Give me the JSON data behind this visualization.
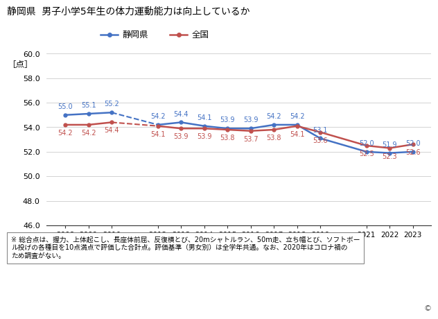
{
  "title": "静岡県  男子小学5年生の体力運動能力は向上しているか",
  "ylabel": "［点］",
  "years_shizuoka": [
    2008,
    2009,
    2010,
    2012,
    2013,
    2014,
    2015,
    2016,
    2017,
    2018,
    2019,
    2021,
    2022,
    2023
  ],
  "values_shizuoka": [
    55.0,
    55.1,
    55.2,
    54.2,
    54.4,
    54.1,
    53.9,
    53.9,
    54.2,
    54.2,
    53.1,
    52.0,
    51.9,
    52.0
  ],
  "years_kokoku": [
    2008,
    2009,
    2010,
    2012,
    2013,
    2014,
    2015,
    2016,
    2017,
    2018,
    2019,
    2021,
    2022,
    2023
  ],
  "values_kokoku": [
    54.2,
    54.2,
    54.4,
    54.1,
    53.9,
    53.9,
    53.8,
    53.7,
    53.8,
    54.1,
    53.6,
    52.5,
    52.3,
    52.6
  ],
  "color_shizuoka": "#4472C4",
  "color_kokoku": "#C0504D",
  "legend_shizuoka": "静岡県",
  "legend_kokoku": "全国",
  "ylim_min": 46.0,
  "ylim_max": 60.0,
  "yticks": [
    46.0,
    48.0,
    50.0,
    52.0,
    54.0,
    56.0,
    58.0,
    60.0
  ],
  "xticks": [
    2008,
    2009,
    2010,
    2012,
    2013,
    2014,
    2015,
    2016,
    2017,
    2018,
    2019,
    2021,
    2022,
    2023
  ],
  "note_line1": "※ 総合点は、握力、上体起こし、長座体前屈、反復横とび、20mシャトルラン、50m走、立ち幅とび、ソフトボー",
  "note_line2": "ル投げの各種目を10点満点で評価した合計点。評価基準（男女別）は全学年共通。なお、2020年はコロナ禍の",
  "note_line3": "ため調査がない。",
  "copyright": "©"
}
